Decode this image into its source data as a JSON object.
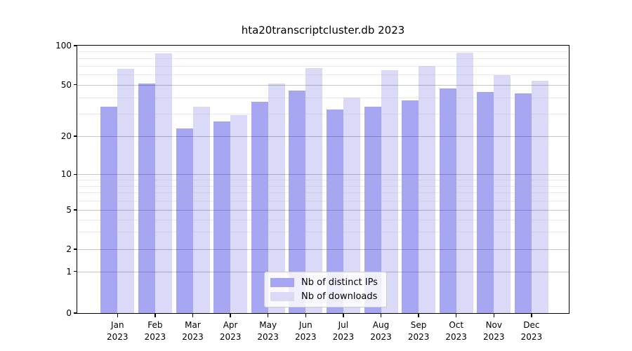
{
  "chart_data": {
    "type": "bar",
    "title": "hta20transcriptcluster.db 2023",
    "categories": [
      "Jan",
      "Feb",
      "Mar",
      "Apr",
      "May",
      "Jun",
      "Jul",
      "Aug",
      "Sep",
      "Oct",
      "Nov",
      "Dec"
    ],
    "category_year": "2023",
    "series": [
      {
        "name": "Nb of distinct IPs",
        "color": "#a6a6f2",
        "values": [
          34,
          51,
          23,
          26,
          37,
          45,
          32,
          34,
          38,
          47,
          44,
          43
        ]
      },
      {
        "name": "Nb of downloads",
        "color": "#dadaf8",
        "values": [
          66,
          87,
          34,
          29,
          51,
          67,
          40,
          65,
          70,
          88,
          59,
          54
        ]
      }
    ],
    "y_axis": {
      "ticks": [
        0,
        1,
        2,
        5,
        10,
        20,
        50,
        100
      ],
      "minor_ticks": [
        3,
        4,
        6,
        7,
        8,
        9,
        30,
        40,
        60,
        70,
        80,
        90
      ],
      "scale": "log-like",
      "range": [
        0,
        100
      ]
    },
    "x_axis": {
      "tick_label_line2": "2023"
    },
    "legend": {
      "position": "bottom-center",
      "labels": [
        "Nb of distinct IPs",
        "Nb of downloads"
      ]
    },
    "grid": true,
    "colors": {
      "bar_dark": "#a6a6f2",
      "bar_light": "#dadaf8",
      "grid_major": "#c7c7c7",
      "grid_minor": "#ececec"
    }
  }
}
